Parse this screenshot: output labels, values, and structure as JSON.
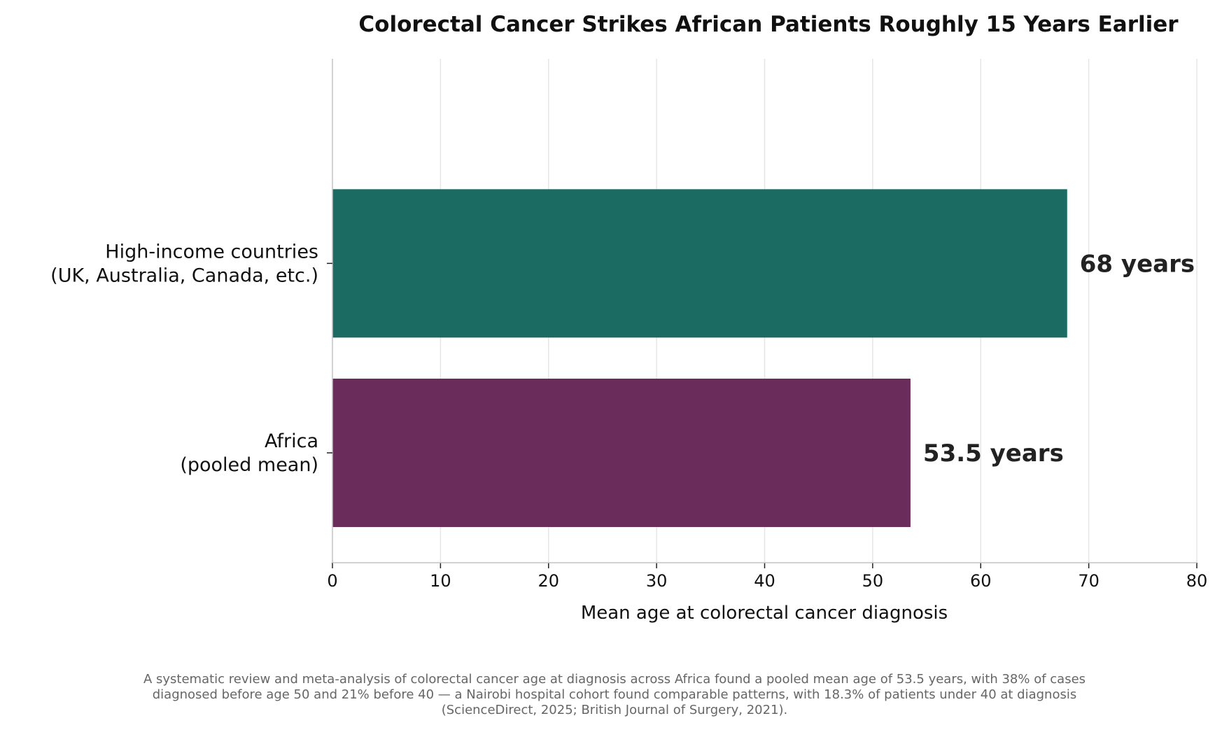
{
  "chart_data": {
    "type": "bar",
    "orientation": "horizontal",
    "title": "Colorectal Cancer Strikes African Patients Roughly 15 Years Earlier",
    "xlabel": "Mean age at colorectal cancer diagnosis",
    "ylabel": "",
    "xlim": [
      0,
      80
    ],
    "xticks": [
      0,
      10,
      20,
      30,
      40,
      50,
      60,
      70,
      80
    ],
    "grid": "vertical",
    "categories": [
      {
        "lines": [
          "High-income countries",
          "(UK, Australia, Canada, etc.)"
        ],
        "value": 68,
        "value_label": "68 years",
        "color": "#1c6b63"
      },
      {
        "lines": [
          "Africa",
          "(pooled mean)"
        ],
        "value": 53.5,
        "value_label": "53.5 years",
        "color": "#6a2c5a"
      }
    ]
  },
  "caption": "A systematic review and meta-analysis of colorectal cancer age at diagnosis across Africa found a pooled mean age of 53.5 years, with 38% of cases diagnosed before age 50 and 21% before 40 — a Nairobi hospital cohort found comparable patterns, with 18.3% of patients under 40 at diagnosis (ScienceDirect, 2025; British Journal of Surgery, 2021)."
}
